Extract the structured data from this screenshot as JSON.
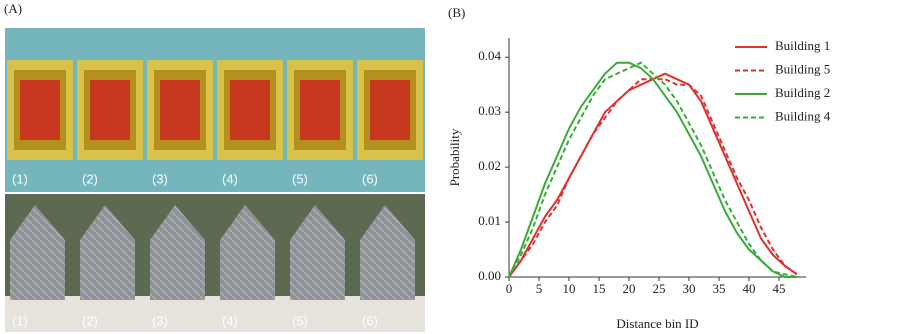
{
  "panel_a_label": "(A)",
  "panel_b_label": "(B)",
  "image_labels_top": [
    "(1)",
    "(2)",
    "(3)",
    "(4)",
    "(5)",
    "(6)"
  ],
  "image_labels_bottom": [
    "(1)",
    "(2)",
    "(3)",
    "(4)",
    "(5)",
    "(6)"
  ],
  "chart_data": {
    "type": "line",
    "xlabel": "Distance bin ID",
    "ylabel": "Probability",
    "x": [
      0,
      2,
      4,
      6,
      8,
      10,
      12,
      14,
      16,
      18,
      20,
      22,
      24,
      26,
      28,
      30,
      32,
      34,
      36,
      38,
      40,
      42,
      44,
      46,
      48
    ],
    "series": [
      {
        "name": "Building 1",
        "color": "#e03030",
        "style": "solid",
        "values": [
          0,
          0.003,
          0.007,
          0.011,
          0.014,
          0.018,
          0.022,
          0.026,
          0.03,
          0.032,
          0.034,
          0.035,
          0.036,
          0.037,
          0.036,
          0.035,
          0.032,
          0.027,
          0.022,
          0.017,
          0.012,
          0.007,
          0.004,
          0.002,
          0.0005
        ]
      },
      {
        "name": "Building 5",
        "color": "#e03030",
        "style": "dashed",
        "values": [
          0,
          0.003,
          0.006,
          0.01,
          0.013,
          0.018,
          0.022,
          0.026,
          0.029,
          0.032,
          0.034,
          0.036,
          0.036,
          0.036,
          0.035,
          0.035,
          0.033,
          0.028,
          0.023,
          0.018,
          0.014,
          0.009,
          0.005,
          0.002,
          0.0005
        ]
      },
      {
        "name": "Building 2",
        "color": "#3aaa3a",
        "style": "solid",
        "values": [
          0,
          0.005,
          0.011,
          0.017,
          0.022,
          0.027,
          0.031,
          0.034,
          0.037,
          0.039,
          0.039,
          0.038,
          0.036,
          0.033,
          0.03,
          0.026,
          0.022,
          0.017,
          0.012,
          0.008,
          0.005,
          0.003,
          0.001,
          0,
          0
        ]
      },
      {
        "name": "Building 4",
        "color": "#3aaa3a",
        "style": "dashed",
        "values": [
          0,
          0.004,
          0.009,
          0.015,
          0.02,
          0.025,
          0.029,
          0.033,
          0.036,
          0.037,
          0.038,
          0.039,
          0.037,
          0.035,
          0.032,
          0.028,
          0.024,
          0.019,
          0.014,
          0.01,
          0.006,
          0.003,
          0.001,
          0.0005,
          0
        ]
      }
    ],
    "xlim": [
      0,
      49.5
    ],
    "xticks": [
      0,
      5,
      10,
      15,
      20,
      25,
      30,
      35,
      40,
      45
    ],
    "ylim": [
      0,
      0.0435
    ],
    "yticks": [
      {
        "value": 0,
        "label": "0.00"
      },
      0.01,
      0.02,
      0.03,
      0.04
    ],
    "legend": "upper right"
  }
}
